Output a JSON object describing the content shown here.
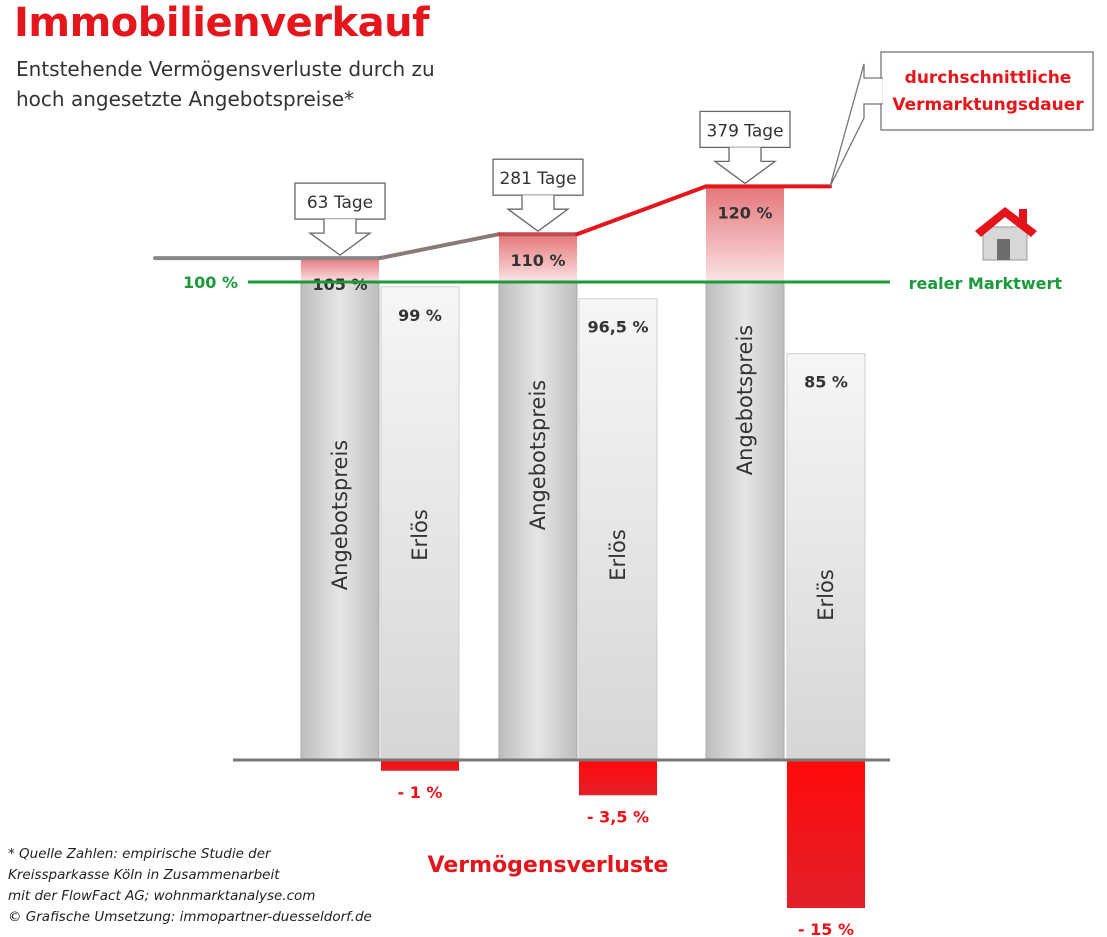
{
  "title": "Immobilienverkauf",
  "subtitle": "Entstehende Vermögensverluste durch zu hoch angesetzte Angebotspreise*",
  "footnote": [
    "* Quelle Zahlen: empirische Studie der",
    "Kreissparkasse Köln in Zusammenarbeit",
    "mit der FlowFact AG; wohnmarktanalyse.com",
    "© Grafische Umsetzung: immopartner-duesseldorf.de"
  ],
  "colors": {
    "accent_red": "#e4161b",
    "market_green": "#1a9a3a",
    "bar_gray": "#c8c8c8",
    "loss_red": "#f10f17"
  },
  "chart_data": {
    "type": "bar",
    "categories": [
      "63 Tage",
      "281 Tage",
      "379 Tage"
    ],
    "series": [
      {
        "name": "Angebotspreis",
        "values": [
          105,
          110,
          120
        ],
        "labels": [
          "105 %",
          "110 %",
          "120 %"
        ]
      },
      {
        "name": "Erlös",
        "values": [
          99,
          96.5,
          85
        ],
        "labels": [
          "99 %",
          "96,5 %",
          "85 %"
        ]
      }
    ],
    "losses": {
      "values": [
        -1,
        -3.5,
        -15
      ],
      "labels": [
        "- 1 %",
        "- 3,5 %",
        "- 15 %"
      ]
    },
    "reference_line": {
      "value": 100,
      "label": "100 %",
      "name": "realer Marktwert"
    },
    "duration_label": "durchschnittliche Vermarktungsdauer",
    "loss_label": "Vermögensverluste",
    "ylim": [
      -20,
      120
    ]
  }
}
